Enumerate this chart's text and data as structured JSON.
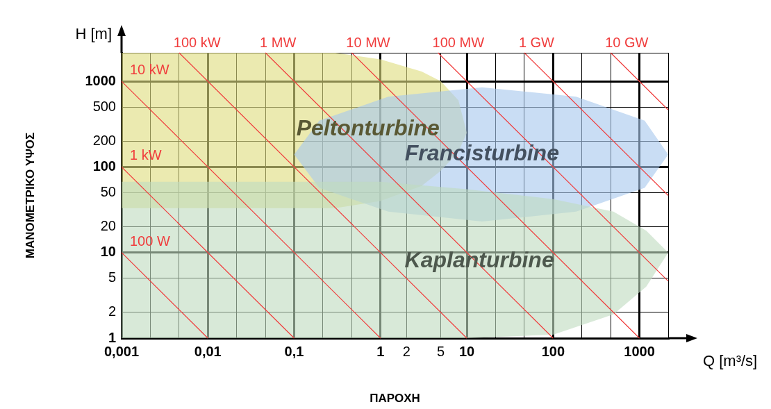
{
  "chart_data": {
    "type": "area",
    "xlabel": "ΠΑΡΟΧΗ",
    "ylabel": "ΜΑΝΟΜΕΤΡΙΚΟ ΥΨΟΣ",
    "annotations": [
      "H [m]",
      "Q [m³/s]"
    ],
    "log": "xy",
    "grid": true,
    "legend": false,
    "marker": "none",
    "xlim": [
      0.001,
      2154
    ],
    "ylim": [
      1,
      2154
    ],
    "xticks": [
      {
        "value": 0.001,
        "label": "0,001"
      },
      {
        "value": 0.00215,
        "label": null
      },
      {
        "value": 0.00464,
        "label": null
      },
      {
        "value": 0.01,
        "label": "0,01"
      },
      {
        "value": 0.0215,
        "label": null
      },
      {
        "value": 0.0464,
        "label": null
      },
      {
        "value": 0.1,
        "label": "0,1"
      },
      {
        "value": 0.215,
        "label": null
      },
      {
        "value": 0.464,
        "label": null
      },
      1,
      2,
      5,
      10,
      {
        "value": 21.5,
        "label": null
      },
      {
        "value": 46.4,
        "label": null
      },
      100,
      {
        "value": 215,
        "label": null
      },
      {
        "value": 464,
        "label": null
      },
      1000,
      {
        "value": 2154,
        "label": null
      }
    ],
    "yticks": [
      1,
      2,
      5,
      10,
      20,
      50,
      100,
      200,
      500,
      1000,
      {
        "value": 2154,
        "label": null
      }
    ],
    "series": [
      {
        "name": "Kaplanturbine",
        "color": "#c0dcc0",
        "x": [
          0.001,
          1,
          10,
          100,
          500,
          1200,
          2154,
          1200,
          500,
          100,
          10,
          1,
          0.001
        ],
        "values": [
          67,
          67,
          55,
          42,
          30,
          18,
          10,
          4,
          1.9,
          1.1,
          1,
          1,
          1
        ]
      },
      {
        "name": "Francisturbine",
        "color": "#a8c8ee",
        "x": [
          0.1,
          0.195,
          1.23,
          15,
          185,
          1150,
          2154,
          1150,
          185,
          15,
          1.23,
          0.195
        ],
        "values": [
          140,
          347,
          660,
          850,
          660,
          347,
          140,
          57,
          30,
          23,
          30,
          57
        ]
      },
      {
        "name": "Peltonturbine",
        "color": "#dedd7f",
        "x": [
          0.001,
          0.3,
          1,
          3,
          5,
          8,
          10,
          8,
          5,
          3,
          1,
          0.3,
          0.001
        ],
        "values": [
          2154,
          2154,
          1800,
          1300,
          1000,
          600,
          250,
          150,
          90,
          60,
          40,
          33,
          33
        ]
      },
      {
        "type": "line",
        "name": "100 W",
        "color": "#f03c3c",
        "x": [
          0.001,
          0.01
        ],
        "values": [
          10,
          1
        ]
      },
      {
        "type": "line",
        "name": "1 kW",
        "color": "#f03c3c",
        "x": [
          0.001,
          0.1
        ],
        "values": [
          100,
          1
        ]
      },
      {
        "type": "line",
        "name": "10 kW",
        "color": "#f03c3c",
        "x": [
          0.001,
          1
        ],
        "values": [
          1000,
          1
        ]
      },
      {
        "type": "line",
        "name": "100 kW",
        "color": "#f03c3c",
        "x": [
          0.00464,
          10
        ],
        "values": [
          2154,
          1
        ]
      },
      {
        "type": "line",
        "name": "1 MW",
        "color": "#f03c3c",
        "x": [
          0.0464,
          100
        ],
        "values": [
          2154,
          1
        ]
      },
      {
        "type": "line",
        "name": "10 MW",
        "color": "#f03c3c",
        "x": [
          0.464,
          1000
        ],
        "values": [
          2154,
          1
        ]
      },
      {
        "type": "line",
        "name": "100 MW",
        "color": "#f03c3c",
        "x": [
          4.64,
          2154
        ],
        "values": [
          2154,
          4.64
        ]
      },
      {
        "type": "line",
        "name": "1 GW",
        "color": "#f03c3c",
        "x": [
          46.4,
          2154
        ],
        "values": [
          2154,
          46.4
        ]
      },
      {
        "type": "line",
        "name": "10 GW",
        "color": "#f03c3c",
        "x": [
          464,
          2154
        ],
        "values": [
          2154,
          464
        ]
      }
    ]
  }
}
